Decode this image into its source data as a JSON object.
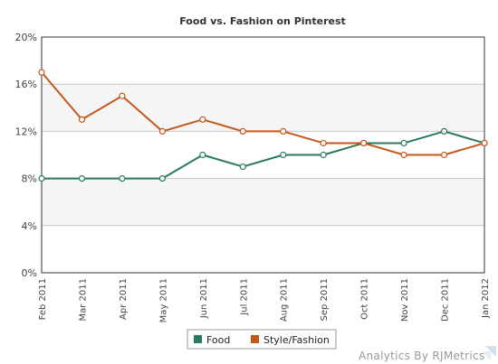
{
  "chart_data": {
    "type": "line",
    "title": "Food vs. Fashion on Pinterest",
    "categories": [
      "Feb 2011",
      "Mar 2011",
      "Apr 2011",
      "May 2011",
      "Jun 2011",
      "Jul 2011",
      "Aug 2011",
      "Sep 2011",
      "Oct 2011",
      "Nov 2011",
      "Dec 2011",
      "Jan 2012"
    ],
    "yticks": [
      "0%",
      "4%",
      "8%",
      "12%",
      "16%",
      "20%"
    ],
    "ylim": [
      0,
      20
    ],
    "grid": true,
    "legend_position": "bottom",
    "series": [
      {
        "name": "Food",
        "color": "#2a7a5a",
        "values": [
          8,
          8,
          8,
          8,
          10,
          9,
          10,
          10,
          11,
          11,
          12,
          11
        ]
      },
      {
        "name": "Style/Fashion",
        "color": "#c4581a",
        "values": [
          17,
          13,
          15,
          12,
          13,
          12,
          12,
          11,
          11,
          10,
          10,
          11
        ]
      }
    ]
  },
  "credit": "Analytics By RJMetrics"
}
